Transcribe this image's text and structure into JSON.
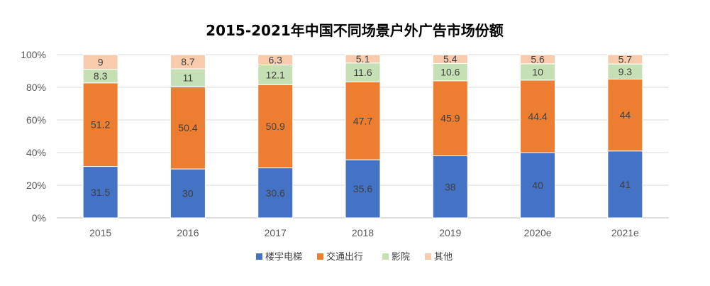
{
  "chart_data": {
    "type": "bar",
    "stacked": true,
    "normalized": true,
    "title": "2015-2021年中国不同场景户外广告市场份额",
    "xlabel": "",
    "ylabel": "",
    "categories": [
      "2015",
      "2016",
      "2017",
      "2018",
      "2019",
      "2020e",
      "2021e"
    ],
    "y_ticks": [
      "0%",
      "20%",
      "40%",
      "60%",
      "80%",
      "100%"
    ],
    "ylim": [
      0,
      100
    ],
    "grid": true,
    "legend_position": "bottom",
    "series": [
      {
        "name": "楼宇电梯",
        "color": "#4472C4",
        "values": [
          31.5,
          30,
          30.6,
          35.6,
          38,
          40,
          41
        ]
      },
      {
        "name": "交通出行",
        "color": "#ED7D31",
        "values": [
          51.2,
          50.4,
          50.9,
          47.7,
          45.9,
          44.4,
          44
        ]
      },
      {
        "name": "影院",
        "color": "#C5E0B4",
        "values": [
          8.3,
          11,
          12.1,
          11.6,
          10.6,
          10,
          9.3
        ]
      },
      {
        "name": "其他",
        "color": "#F8CBAD",
        "values": [
          9,
          8.7,
          6.3,
          5.1,
          5.4,
          5.6,
          5.7
        ]
      }
    ]
  }
}
